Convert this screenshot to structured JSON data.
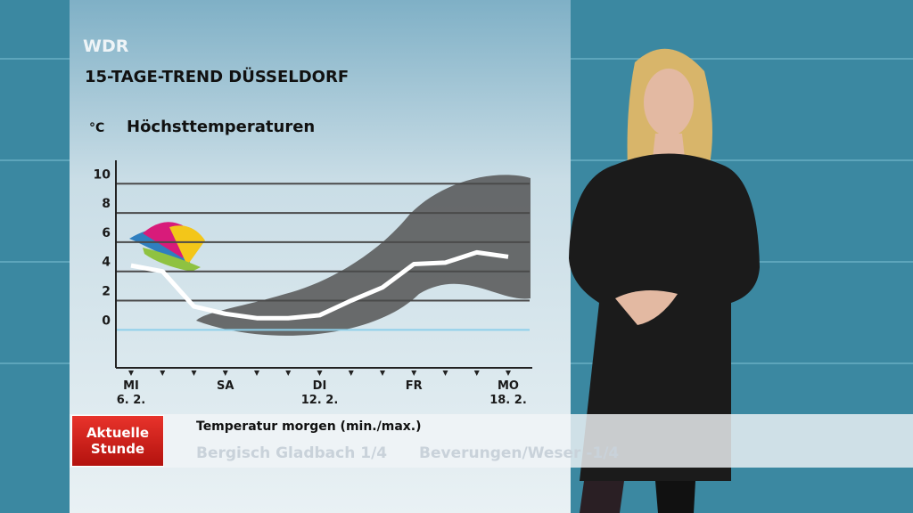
{
  "header": {
    "logo": "WDR",
    "title": "15-TAGE-TREND DÜSSELDORF"
  },
  "chart_data": {
    "type": "line",
    "title": "Höchsttemperaturen",
    "y_unit": "°C",
    "categories": [
      "MI\n6. 2.",
      null,
      null,
      "SA",
      null,
      null,
      "DI\n12. 2.",
      null,
      null,
      "FR",
      null,
      null,
      "MO\n18. 2."
    ],
    "series": [
      {
        "name": "Höchsttemperatur",
        "color": "#ffffff",
        "values": [
          4.4,
          4.0,
          1.6,
          1.1,
          0.8,
          0.8,
          1.0,
          2.0,
          2.9,
          4.5,
          4.6,
          5.3,
          5.0
        ]
      }
    ],
    "ylim": [
      -2.6,
      11.6
    ],
    "yticks": [
      0,
      2,
      4,
      6,
      8,
      10
    ],
    "grid": true
  },
  "ticker": {
    "logo": "Aktuelle\nStunde",
    "heading": "Temperatur morgen (min./max.)",
    "items": [
      "Bergisch Gladbach 1/4",
      "Beverungen/Weser -1/4"
    ]
  }
}
